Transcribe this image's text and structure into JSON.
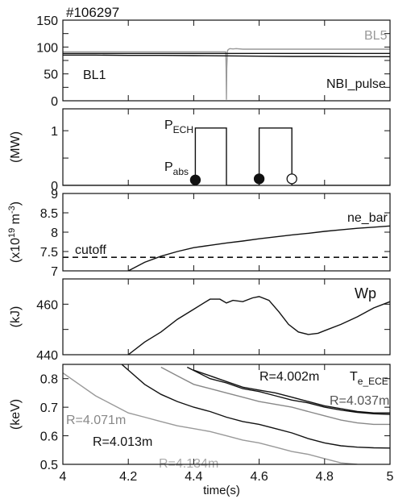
{
  "shot_number": "#106297",
  "time_range": [
    4.0,
    5.0
  ],
  "x_ticks": [
    "4",
    "4.2",
    "4.4",
    "4.6",
    "4.8",
    "5"
  ],
  "x_tick_values": [
    4.0,
    4.2,
    4.4,
    4.6,
    4.8,
    5.0
  ],
  "x_label": "time(s)",
  "chart_data": [
    {
      "type": "line",
      "ylabel": "",
      "ylim": [
        0,
        150
      ],
      "y_ticks": [
        0,
        25,
        50,
        75,
        100,
        125,
        150
      ],
      "y_tick_labels": [
        "0",
        "",
        "50",
        "",
        "100",
        "",
        "150"
      ],
      "series": [
        {
          "name": "BL5",
          "color": "#999999",
          "x": [
            4.0,
            4.1,
            4.2,
            4.3,
            4.4,
            4.498,
            4.499,
            4.5,
            4.501,
            4.503,
            4.505,
            4.51,
            4.52,
            4.53,
            4.55,
            4.6,
            4.7,
            4.8,
            4.9,
            5.0
          ],
          "y": [
            91,
            91,
            91,
            91,
            91,
            91,
            60,
            2,
            60,
            92,
            95,
            97,
            96.5,
            97,
            96,
            96,
            96,
            96,
            96,
            96
          ]
        },
        {
          "name": "BL1",
          "color": "#111111",
          "x": [
            4.0,
            4.1,
            4.2,
            4.3,
            4.4,
            4.5,
            4.6,
            4.7,
            4.8,
            4.9,
            5.0
          ],
          "y": [
            85,
            85,
            84.5,
            84.5,
            84,
            83.5,
            83,
            82.5,
            82.5,
            82,
            82
          ]
        },
        {
          "name": "NBI_pulse",
          "color": "#111111",
          "x": [
            4.0,
            5.0
          ],
          "y": [
            88,
            88
          ]
        }
      ],
      "annotations": [
        "BL5",
        "BL1",
        "NBI_pulse"
      ]
    },
    {
      "type": "line",
      "ylabel": "(MW)",
      "ylim": [
        0,
        1.4
      ],
      "y_ticks": [
        0,
        0.5,
        1
      ],
      "y_tick_labels": [
        "0",
        "",
        "1"
      ],
      "series": [
        {
          "name": "P_ECH",
          "color": "#111111",
          "step": true,
          "x": [
            4.0,
            4.405,
            4.405,
            4.5,
            4.5,
            4.6,
            4.6,
            4.7,
            4.7,
            5.0
          ],
          "y": [
            0,
            0,
            1.05,
            1.05,
            0,
            0,
            1.05,
            1.05,
            0,
            0
          ]
        }
      ],
      "markers": [
        {
          "x": 4.405,
          "y": 0.1,
          "filled": true
        },
        {
          "x": 4.6,
          "y": 0.12,
          "filled": true
        },
        {
          "x": 4.7,
          "y": 0.12,
          "filled": false
        }
      ],
      "annotations": [
        "P",
        "ECH",
        "P",
        "abs"
      ]
    },
    {
      "type": "line",
      "ylabel": "(x10  m  )",
      "ylim": [
        7.0,
        9.0
      ],
      "y_ticks": [
        7.0,
        7.5,
        8.0,
        8.5,
        9.0
      ],
      "y_tick_labels": [
        "7",
        "7.5",
        "8",
        "8.5",
        "9"
      ],
      "series": [
        {
          "name": "ne_bar",
          "color": "#111111",
          "x": [
            4.2,
            4.25,
            4.3,
            4.35,
            4.4,
            4.45,
            4.5,
            4.55,
            4.6,
            4.65,
            4.7,
            4.75,
            4.8,
            4.85,
            4.9,
            4.95,
            5.0
          ],
          "y": [
            7.0,
            7.22,
            7.38,
            7.5,
            7.6,
            7.66,
            7.72,
            7.77,
            7.83,
            7.88,
            7.93,
            7.97,
            8.02,
            8.06,
            8.1,
            8.13,
            8.16
          ]
        },
        {
          "name": "cutoff",
          "color": "#111111",
          "dashed": true,
          "x": [
            4.0,
            5.0
          ],
          "y": [
            7.35,
            7.35
          ]
        }
      ],
      "annotations": [
        "ne_bar",
        "cutoff"
      ]
    },
    {
      "type": "line",
      "ylabel": "(kJ)",
      "ylim": [
        440,
        470
      ],
      "y_ticks": [
        440,
        450,
        460,
        470
      ],
      "y_tick_labels": [
        "440",
        "",
        "460",
        ""
      ],
      "series": [
        {
          "name": "Wp",
          "color": "#111111",
          "x": [
            4.2,
            4.25,
            4.3,
            4.35,
            4.4,
            4.45,
            4.48,
            4.5,
            4.52,
            4.55,
            4.58,
            4.6,
            4.63,
            4.66,
            4.69,
            4.72,
            4.75,
            4.78,
            4.8,
            4.85,
            4.9,
            4.95,
            5.0
          ],
          "y": [
            440,
            445,
            449,
            454,
            458,
            462,
            462,
            460.5,
            461.5,
            461,
            462.5,
            463,
            461.5,
            457,
            452,
            449,
            448,
            448.5,
            449.5,
            452,
            455,
            458.5,
            461
          ]
        }
      ],
      "annotations": [
        "Wp"
      ]
    },
    {
      "type": "line",
      "ylabel": "(keV)",
      "ylim": [
        0.5,
        0.85
      ],
      "y_ticks": [
        0.5,
        0.6,
        0.7,
        0.8
      ],
      "y_tick_labels": [
        "0.5",
        "0.6",
        "0.7",
        "0.8"
      ],
      "series": [
        {
          "name": "R=4.002m",
          "color": "#111111",
          "x": [
            4.4,
            4.45,
            4.5,
            4.55,
            4.6,
            4.65,
            4.7,
            4.75,
            4.8,
            4.85,
            4.9,
            4.95,
            5.0
          ],
          "y": [
            0.83,
            0.81,
            0.79,
            0.77,
            0.76,
            0.75,
            0.735,
            0.72,
            0.705,
            0.695,
            0.685,
            0.68,
            0.68
          ]
        },
        {
          "name": "R=4.037m",
          "color": "#111111",
          "x": [
            4.38,
            4.45,
            4.5,
            4.55,
            4.6,
            4.65,
            4.7,
            4.75,
            4.8,
            4.85,
            4.9,
            4.95,
            5.0
          ],
          "y": [
            0.84,
            0.8,
            0.785,
            0.765,
            0.755,
            0.74,
            0.725,
            0.715,
            0.7,
            0.69,
            0.682,
            0.677,
            0.675
          ]
        },
        {
          "name": "R=4.071m",
          "color": "#888888",
          "x": [
            4.3,
            4.35,
            4.4,
            4.45,
            4.5,
            4.55,
            4.6,
            4.65,
            4.7,
            4.75,
            4.8,
            4.85,
            4.9,
            4.95,
            5.0
          ],
          "y": [
            0.84,
            0.81,
            0.78,
            0.765,
            0.75,
            0.735,
            0.72,
            0.71,
            0.7,
            0.685,
            0.67,
            0.655,
            0.645,
            0.64,
            0.64
          ]
        },
        {
          "name": "R=4.013m",
          "color": "#111111",
          "x": [
            4.18,
            4.25,
            4.3,
            4.35,
            4.4,
            4.45,
            4.5,
            4.55,
            4.6,
            4.65,
            4.7,
            4.75,
            4.8,
            4.85,
            4.9,
            4.95,
            5.0
          ],
          "y": [
            0.85,
            0.78,
            0.745,
            0.72,
            0.7,
            0.685,
            0.665,
            0.65,
            0.64,
            0.625,
            0.61,
            0.59,
            0.575,
            0.565,
            0.56,
            0.558,
            0.557
          ]
        },
        {
          "name": "R=4.134m",
          "color": "#999999",
          "x": [
            4.0,
            4.05,
            4.1,
            4.15,
            4.2,
            4.25,
            4.3,
            4.35,
            4.4,
            4.45,
            4.5,
            4.55,
            4.6,
            4.65,
            4.7,
            4.75,
            4.8,
            4.85,
            4.9
          ],
          "y": [
            0.82,
            0.78,
            0.74,
            0.71,
            0.68,
            0.665,
            0.65,
            0.635,
            0.625,
            0.615,
            0.6,
            0.585,
            0.575,
            0.56,
            0.545,
            0.535,
            0.52,
            0.505,
            0.5
          ]
        }
      ],
      "annotations": [
        "R=4.002m",
        "R=4.037m",
        "R=4.071m",
        "R=4.013m",
        "R=4.134m",
        "T",
        "e_ECE"
      ]
    }
  ]
}
